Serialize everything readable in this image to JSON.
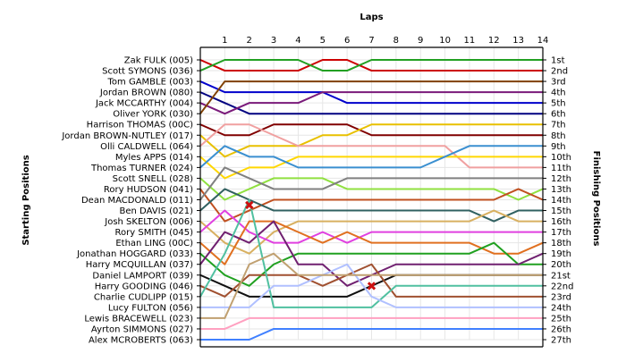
{
  "chart_data": {
    "type": "line",
    "title": "",
    "xlabel": "Laps",
    "ylabel_left": "Starting Positions",
    "ylabel_right": "Finishing Positions",
    "laps": [
      0,
      1,
      2,
      3,
      4,
      5,
      6,
      7,
      8,
      9,
      10,
      11,
      12,
      13,
      14
    ],
    "lap_tick_labels": [
      "1",
      "2",
      "3",
      "4",
      "5",
      "6",
      "7",
      "8",
      "9",
      "10",
      "11",
      "12",
      "13",
      "14"
    ],
    "drivers": [
      "Zak FULK (005)",
      "Scott SYMONS (036)",
      "Tom GAMBLE (003)",
      "Jordan BROWN (080)",
      "Jack MCCARTHY (004)",
      "Oliver YORK (030)",
      "Harrison THOMAS (00C)",
      "Jordan BROWN-NUTLEY (017)",
      "Olli CALDWELL (064)",
      "Myles APPS (014)",
      "Thomas TURNER (024)",
      "Scott SNELL (028)",
      "Rory HUDSON (041)",
      "Dean MACDONALD (011)",
      "Ben DAVIS (021)",
      "Josh SKELTON (006)",
      "Rory SMITH (045)",
      "Ethan LING (00C)",
      "Jonathan HOGGARD (033)",
      "Harry MCQUILLAN (037)",
      "Daniel LAMPORT (039)",
      "Harry GOODING (046)",
      "Charlie CUDLIPP (015)",
      "Lucy FULTON (056)",
      "Lewis BRACEWELL (023)",
      "Ayrton SIMMONS (027)",
      "Alex MCROBERTS (063)"
    ],
    "finishing_labels": [
      "1st",
      "2nd",
      "3rd",
      "4th",
      "5th",
      "6th",
      "7th",
      "8th",
      "9th",
      "10th",
      "11th",
      "12th",
      "13th",
      "14th",
      "15th",
      "16th",
      "17th",
      "18th",
      "19th",
      "20th",
      "21st",
      "22nd",
      "23rd",
      "24th",
      "25th",
      "26th",
      "27th"
    ],
    "series": [
      {
        "color": "#cc0000",
        "positions": [
          1,
          2,
          2,
          2,
          2,
          1,
          1,
          2,
          2,
          2,
          2,
          2,
          2,
          2,
          2
        ]
      },
      {
        "color": "#22a022",
        "positions": [
          2,
          1,
          1,
          1,
          1,
          2,
          2,
          1,
          1,
          1,
          1,
          1,
          1,
          1,
          1
        ]
      },
      {
        "color": "#0000cc",
        "positions": [
          3,
          4,
          4,
          4,
          4,
          4,
          5,
          5,
          5,
          5,
          5,
          5,
          5,
          5,
          5
        ]
      },
      {
        "color": "#000080",
        "positions": [
          4,
          5,
          6,
          6,
          6,
          6,
          6,
          6,
          6,
          6,
          6,
          6,
          6,
          6,
          6
        ]
      },
      {
        "color": "#7a1a7a",
        "positions": [
          5,
          6,
          5,
          5,
          5,
          4,
          4,
          4,
          4,
          4,
          4,
          4,
          4,
          4,
          4
        ]
      },
      {
        "color": "#804000",
        "positions": [
          6,
          3,
          3,
          3,
          3,
          3,
          3,
          3,
          3,
          3,
          3,
          3,
          3,
          3,
          3
        ]
      },
      {
        "color": "#800000",
        "positions": [
          7,
          8,
          8,
          7,
          7,
          7,
          7,
          8,
          8,
          8,
          8,
          8,
          8,
          8,
          8
        ]
      },
      {
        "color": "#e8c000",
        "positions": [
          8,
          10,
          9,
          9,
          9,
          8,
          8,
          7,
          7,
          7,
          7,
          7,
          7,
          7,
          7
        ]
      },
      {
        "color": "#f0a0a0",
        "positions": [
          9,
          7,
          7,
          8,
          9,
          9,
          9,
          9,
          9,
          9,
          9,
          11,
          11,
          11,
          11
        ]
      },
      {
        "color": "#ffd700",
        "positions": [
          10,
          12,
          11,
          11,
          10,
          10,
          10,
          10,
          10,
          10,
          10,
          10,
          10,
          10,
          10
        ]
      },
      {
        "color": "#3a8fd0",
        "positions": [
          11,
          9,
          10,
          10,
          11,
          11,
          11,
          11,
          11,
          11,
          10,
          9,
          9,
          9,
          9
        ]
      },
      {
        "color": "#90e040",
        "positions": [
          12,
          14,
          13,
          12,
          12,
          12,
          13,
          13,
          13,
          13,
          13,
          13,
          13,
          14,
          13
        ]
      },
      {
        "color": "#c05020",
        "positions": [
          13,
          16,
          15,
          14,
          14,
          14,
          14,
          14,
          14,
          14,
          14,
          14,
          14,
          13,
          14
        ]
      },
      {
        "color": "#808080",
        "positions": [
          14,
          11,
          12,
          13,
          13,
          13,
          12,
          12,
          12,
          12,
          12,
          12,
          12,
          12,
          12
        ]
      },
      {
        "color": "#306060",
        "positions": [
          15,
          13,
          14,
          15,
          15,
          15,
          15,
          15,
          15,
          15,
          15,
          15,
          16,
          15,
          15
        ]
      },
      {
        "color": "#d8b060",
        "positions": [
          16,
          18,
          19,
          17,
          16,
          16,
          16,
          16,
          16,
          16,
          16,
          16,
          15,
          16,
          16
        ]
      },
      {
        "color": "#e040e0",
        "positions": [
          17,
          15,
          17,
          18,
          18,
          17,
          18,
          17,
          17,
          17,
          17,
          17,
          17,
          17,
          17
        ]
      },
      {
        "color": "#e07020",
        "positions": [
          18,
          20,
          16,
          16,
          17,
          18,
          17,
          18,
          18,
          18,
          18,
          18,
          19,
          19,
          18
        ]
      },
      {
        "color": "#20a020",
        "positions": [
          19,
          21,
          22,
          20,
          19,
          19,
          19,
          19,
          19,
          19,
          19,
          19,
          18,
          20,
          20
        ]
      },
      {
        "color": "#702070",
        "positions": [
          20,
          17,
          18,
          16,
          20,
          20,
          22,
          21,
          20,
          20,
          20,
          20,
          20,
          20,
          19
        ]
      },
      {
        "color": "#101010",
        "positions": [
          21,
          22,
          23,
          23,
          23,
          23,
          23,
          22,
          21,
          21,
          21,
          21,
          21,
          21,
          21
        ]
      },
      {
        "color": "#a05030",
        "positions": [
          22,
          23,
          21,
          21,
          21,
          22,
          21,
          20,
          23,
          23,
          23,
          23,
          23,
          23,
          23
        ]
      },
      {
        "color": "#50c0a0",
        "positions": [
          23,
          19,
          14,
          24,
          24,
          24,
          24,
          24,
          22,
          22,
          22,
          22,
          22,
          22,
          22
        ]
      },
      {
        "color": "#b0c0ff",
        "positions": [
          24,
          24,
          24,
          22,
          22,
          21,
          20,
          23,
          24,
          24,
          24,
          24,
          24,
          24,
          24
        ]
      },
      {
        "color": "#c0a070",
        "positions": [
          25,
          25,
          20,
          19,
          21,
          21,
          21,
          21,
          21,
          21,
          21,
          21,
          21,
          21,
          21
        ]
      },
      {
        "color": "#ffa0c0",
        "positions": [
          26,
          26,
          25,
          25,
          25,
          25,
          25,
          25,
          25,
          25,
          25,
          25,
          25,
          25,
          25
        ]
      },
      {
        "color": "#4080ff",
        "positions": [
          27,
          27,
          27,
          26,
          26,
          26,
          26,
          26,
          26,
          26,
          26,
          26,
          26,
          26,
          26
        ]
      }
    ],
    "annotations": [
      {
        "symbol": "✖",
        "lap": 2,
        "position": 14.5
      },
      {
        "symbol": "✖",
        "lap": 7,
        "position": 22
      }
    ],
    "grid": true
  }
}
